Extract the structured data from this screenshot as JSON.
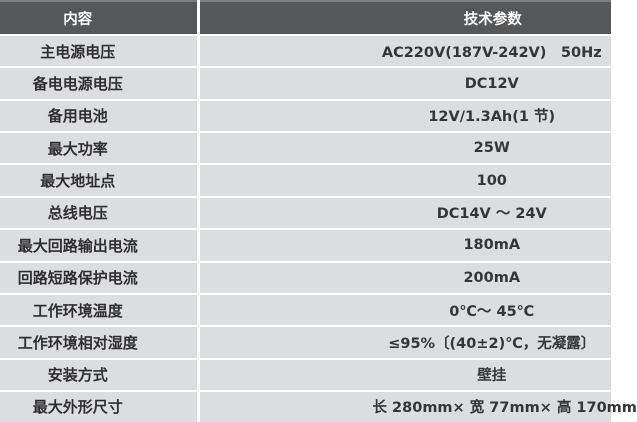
{
  "table": {
    "headers": {
      "content": "内容",
      "params": "技术参数"
    },
    "rows": [
      {
        "label": "主电源电压",
        "value": "AC220V(187V-242V)　50Hz"
      },
      {
        "label": "备电电源电压",
        "value": "DC12V"
      },
      {
        "label": "备用电池",
        "value": "12V/1.3Ah(1 节)"
      },
      {
        "label": "最大功率",
        "value": "25W"
      },
      {
        "label": "最大地址点",
        "value": "100"
      },
      {
        "label": "总线电压",
        "value": "DC14V ～ 24V"
      },
      {
        "label": "最大回路输出电流",
        "value": "180mA"
      },
      {
        "label": "回路短路保护电流",
        "value": "200mA"
      },
      {
        "label": "工作环境温度",
        "value": "0℃～ 45℃"
      },
      {
        "label": "工作环境相对湿度",
        "value": "≤95%〔(40±2)℃，无凝露〕"
      },
      {
        "label": "安装方式",
        "value": "壁挂"
      },
      {
        "label": "最大外形尺寸",
        "value": "长 280mm× 宽 77mm× 高 170mm"
      }
    ]
  },
  "colors": {
    "header_bg": "#565759",
    "header_text": "#ffffff",
    "row_bg": "#dcddde",
    "divider": "#ffffff",
    "label_text": "#2f2f31",
    "value_text": "#353638"
  }
}
